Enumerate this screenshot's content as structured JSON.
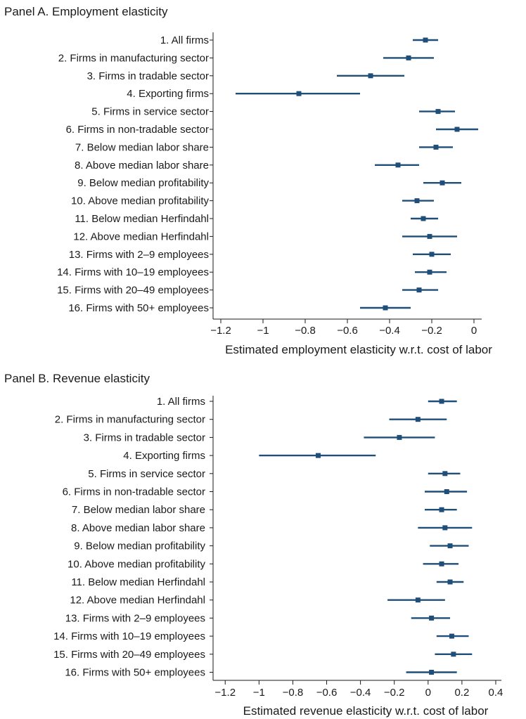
{
  "chart_data": [
    {
      "type": "scatter",
      "title": "Panel A. Employment elasticity",
      "xlabel": "Estimated employment elasticity w.r.t. cost of labor",
      "ylabel": "",
      "xlim": [
        -1.25,
        0.05
      ],
      "xticks": [
        -1.2,
        -1,
        -0.8,
        -0.6,
        -0.4,
        -0.2,
        0
      ],
      "xtick_labels": [
        "−1.2",
        "−1",
        "−0.8",
        "−0.6",
        "−0.4",
        "−0.2",
        "0"
      ],
      "grid": false,
      "color": "#1f4e79",
      "categories": [
        "1. All firms",
        "2. Firms in manufacturing sector",
        "3. Firms in tradable sector",
        "4. Exporting firms",
        "5. Firms in service sector",
        "6. Firms in non-tradable sector",
        "7. Below median labor share",
        "8. Above median labor share",
        "9. Below median profitability",
        "10. Above median profitability",
        "11. Below median Herfindahl",
        "12. Above median Herfindahl",
        "13. Firms with 2–9 employees",
        "14. Firms with 10–19 employees",
        "15. Firms with 20–49 employees",
        "16. Firms with 50+ employees"
      ],
      "estimates": [
        -0.23,
        -0.31,
        -0.49,
        -0.83,
        -0.17,
        -0.08,
        -0.18,
        -0.36,
        -0.15,
        -0.27,
        -0.24,
        -0.21,
        -0.2,
        -0.21,
        -0.26,
        -0.42
      ],
      "ci_low": [
        -0.29,
        -0.43,
        -0.65,
        -1.13,
        -0.26,
        -0.18,
        -0.26,
        -0.47,
        -0.24,
        -0.34,
        -0.3,
        -0.34,
        -0.29,
        -0.28,
        -0.34,
        -0.54
      ],
      "ci_high": [
        -0.17,
        -0.19,
        -0.33,
        -0.54,
        -0.09,
        0.02,
        -0.1,
        -0.26,
        -0.06,
        -0.19,
        -0.17,
        -0.08,
        -0.11,
        -0.13,
        -0.17,
        -0.3
      ]
    },
    {
      "type": "scatter",
      "title": "Panel B. Revenue elasticity",
      "xlabel": "Estimated revenue elasticity w.r.t. cost of labor",
      "ylabel": "",
      "xlim": [
        -1.28,
        0.45
      ],
      "xticks": [
        -1.2,
        -1,
        -0.8,
        -0.6,
        -0.4,
        -0.2,
        0,
        0.2,
        0.4
      ],
      "xtick_labels": [
        "−1.2",
        "−1",
        "−0.8",
        "−0.6",
        "−0.4",
        "−0.2",
        "0",
        "0.2",
        "0.4"
      ],
      "grid": false,
      "color": "#1f4e79",
      "categories": [
        "1. All firms",
        "2. Firms in manufacturing sector",
        "3. Firms in tradable sector",
        "4. Exporting firms",
        "5. Firms in service sector",
        "6. Firms in non-tradable sector",
        "7. Below median labor share",
        "8. Above median labor share",
        "9. Below median profitability",
        "10. Above median profitability",
        "11. Below median Herfindahl",
        "12. Above median Herfindahl",
        "13. Firms with 2–9 employees",
        "14. Firms with 10–19 employees",
        "15. Firms with 20–49 employees",
        "16. Firms with 50+ employees"
      ],
      "estimates": [
        0.08,
        -0.06,
        -0.17,
        -0.65,
        0.1,
        0.11,
        0.08,
        0.1,
        0.13,
        0.08,
        0.13,
        -0.06,
        0.02,
        0.14,
        0.15,
        0.02
      ],
      "ci_low": [
        0.0,
        -0.23,
        -0.38,
        -1.0,
        0.0,
        -0.02,
        -0.02,
        -0.06,
        0.01,
        -0.03,
        0.05,
        -0.24,
        -0.1,
        0.05,
        0.04,
        -0.13
      ],
      "ci_high": [
        0.17,
        0.11,
        0.04,
        -0.31,
        0.19,
        0.23,
        0.17,
        0.26,
        0.24,
        0.18,
        0.21,
        0.1,
        0.13,
        0.24,
        0.26,
        0.17
      ]
    }
  ]
}
